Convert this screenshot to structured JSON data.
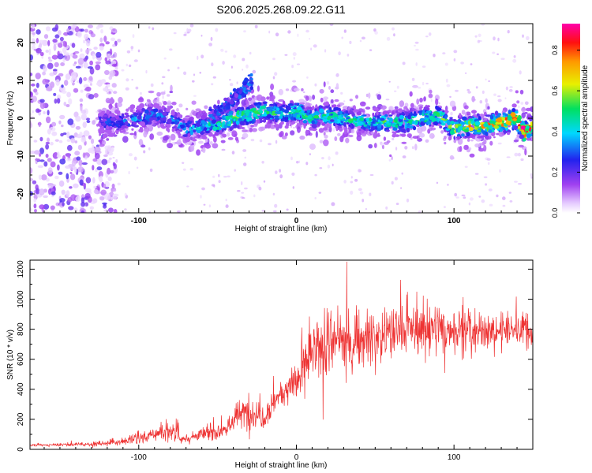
{
  "figure_title": "S206.2025.268.09.22.G11",
  "chart_data": [
    {
      "type": "heatmap",
      "title": "S206.2025.268.09.22.G11",
      "xlabel": "Height of straight line (km)",
      "ylabel": "Frequency (Hz)",
      "xlim": [
        -169,
        150
      ],
      "ylim": [
        -25,
        25
      ],
      "xticks": [
        -100,
        0,
        100
      ],
      "yticks": [
        -20,
        -10,
        0,
        10,
        20
      ],
      "colorbar": {
        "label": "Normalized spectral amplitude",
        "range": [
          0,
          0.93
        ],
        "ticks": [
          0.0,
          0.2,
          0.4,
          0.6,
          0.8
        ],
        "colormap": "white-violet-blue-cyan-green-yellow-orange-red-magenta"
      },
      "ridge": {
        "description": "main signal band frequency (Hz) vs height (km), approximate",
        "x": [
          -125,
          -110,
          -100,
          -90,
          -80,
          -70,
          -60,
          -50,
          -40,
          -30,
          -20,
          -10,
          0,
          10,
          20,
          30,
          40,
          50,
          60,
          70,
          80,
          90,
          100,
          110,
          120,
          130,
          140,
          145,
          150
        ],
        "y": [
          -1,
          -1,
          0,
          1,
          0,
          -3,
          -2,
          -2,
          0,
          1,
          2,
          1,
          2,
          0,
          1,
          0,
          -1,
          -1,
          -1,
          -1,
          0,
          1,
          -3,
          -2,
          -2,
          -1,
          0,
          -4,
          -2
        ],
        "peak_amplitude": [
          0.25,
          0.3,
          0.35,
          0.3,
          0.3,
          0.35,
          0.4,
          0.45,
          0.5,
          0.55,
          0.5,
          0.45,
          0.5,
          0.45,
          0.5,
          0.45,
          0.45,
          0.45,
          0.5,
          0.5,
          0.5,
          0.5,
          0.55,
          0.65,
          0.7,
          0.75,
          0.8,
          0.85,
          0.7
        ]
      },
      "branch": {
        "description": "upward secondary trace",
        "x": [
          -55,
          -45,
          -35,
          -28
        ],
        "y": [
          0,
          3,
          7,
          10
        ]
      },
      "noise_region_x": [
        -169,
        -120
      ]
    },
    {
      "type": "line",
      "xlabel": "Height of straight line (km)",
      "ylabel": "SNR (10 * v/v)",
      "xlim": [
        -169,
        150
      ],
      "ylim": [
        0,
        1260
      ],
      "xticks": [
        -100,
        0,
        100
      ],
      "yticks": [
        0,
        200,
        400,
        600,
        800,
        1000,
        1200
      ],
      "series": [
        {
          "name": "SNR",
          "color": "#ee3333",
          "envelope_x": [
            -169,
            -150,
            -130,
            -115,
            -100,
            -90,
            -80,
            -75,
            -74,
            -60,
            -45,
            -38,
            -30,
            -20,
            -10,
            0,
            5,
            10,
            15,
            20,
            30,
            40,
            50,
            60,
            70,
            80,
            90,
            100,
            110,
            120,
            130,
            140,
            150
          ],
          "mean": [
            30,
            30,
            35,
            45,
            70,
            100,
            120,
            140,
            60,
            100,
            130,
            220,
            250,
            230,
            380,
            450,
            550,
            630,
            650,
            700,
            720,
            740,
            750,
            780,
            800,
            800,
            800,
            800,
            780,
            780,
            790,
            800,
            780
          ],
          "spread": [
            8,
            10,
            12,
            20,
            35,
            45,
            55,
            65,
            20,
            40,
            60,
            80,
            110,
            90,
            80,
            100,
            150,
            170,
            170,
            180,
            180,
            170,
            160,
            150,
            150,
            150,
            145,
            140,
            130,
            110,
            100,
            110,
            120
          ],
          "max_value": 1250,
          "max_value_x": 32
        }
      ]
    }
  ]
}
